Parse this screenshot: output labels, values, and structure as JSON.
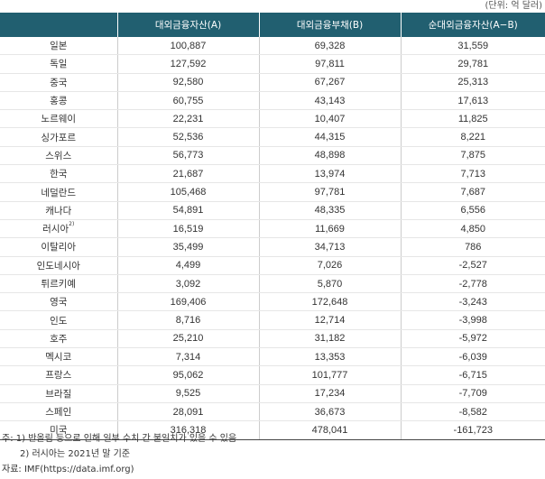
{
  "unit": "(단위: 억 달러)",
  "headers": [
    "",
    "대외금융자산(A)",
    "대외금융부채(B)",
    "순대외금융자산(A−B)"
  ],
  "rows": [
    {
      "country": "일본",
      "assets": "100,887",
      "liabilities": "69,328",
      "net": "31,559"
    },
    {
      "country": "독일",
      "assets": "127,592",
      "liabilities": "97,811",
      "net": "29,781"
    },
    {
      "country": "중국",
      "assets": "92,580",
      "liabilities": "67,267",
      "net": "25,313"
    },
    {
      "country": "홍콩",
      "assets": "60,755",
      "liabilities": "43,143",
      "net": "17,613"
    },
    {
      "country": "노르웨이",
      "assets": "22,231",
      "liabilities": "10,407",
      "net": "11,825"
    },
    {
      "country": "싱가포르",
      "assets": "52,536",
      "liabilities": "44,315",
      "net": "8,221"
    },
    {
      "country": "스위스",
      "assets": "56,773",
      "liabilities": "48,898",
      "net": "7,875"
    },
    {
      "country": "한국",
      "assets": "21,687",
      "liabilities": "13,974",
      "net": "7,713"
    },
    {
      "country": "네덜란드",
      "assets": "105,468",
      "liabilities": "97,781",
      "net": "7,687"
    },
    {
      "country": "캐나다",
      "assets": "54,891",
      "liabilities": "48,335",
      "net": "6,556"
    },
    {
      "country": "러시아",
      "sup": "2)",
      "assets": "16,519",
      "liabilities": "11,669",
      "net": "4,850"
    },
    {
      "country": "이탈리아",
      "assets": "35,499",
      "liabilities": "34,713",
      "net": "786"
    },
    {
      "country": "인도네시아",
      "assets": "4,499",
      "liabilities": "7,026",
      "net": "-2,527"
    },
    {
      "country": "튀르키예",
      "assets": "3,092",
      "liabilities": "5,870",
      "net": "-2,778"
    },
    {
      "country": "영국",
      "assets": "169,406",
      "liabilities": "172,648",
      "net": "-3,243"
    },
    {
      "country": "인도",
      "assets": "8,716",
      "liabilities": "12,714",
      "net": "-3,998"
    },
    {
      "country": "호주",
      "assets": "25,210",
      "liabilities": "31,182",
      "net": "-5,972"
    },
    {
      "country": "멕시코",
      "assets": "7,314",
      "liabilities": "13,353",
      "net": "-6,039"
    },
    {
      "country": "프랑스",
      "assets": "95,062",
      "liabilities": "101,777",
      "net": "-6,715"
    },
    {
      "country": "브라질",
      "assets": "9,525",
      "liabilities": "17,234",
      "net": "-7,709"
    },
    {
      "country": "스페인",
      "assets": "28,091",
      "liabilities": "36,673",
      "net": "-8,582"
    },
    {
      "country": "미국",
      "assets": "316,318",
      "liabilities": "478,041",
      "net": "-161,723"
    }
  ],
  "notes": {
    "note1": "주:  1) 반올림 등으로 인해 일부 수치 간 불일치가 있을 수 있음",
    "note2": "2) 러시아는 2021년 말 기준",
    "source": "자료: IMF(https://data.imf.org)"
  }
}
